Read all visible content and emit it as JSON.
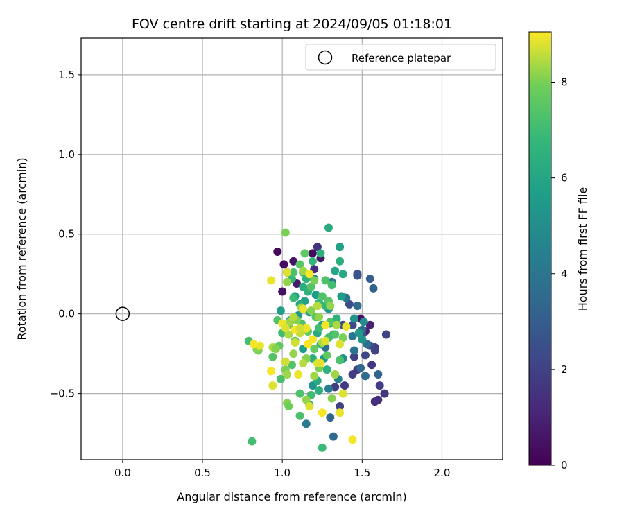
{
  "chart_data": {
    "type": "scatter",
    "title": "FOV centre drift starting at 2024/09/05 01:18:01",
    "xlabel": "Angular distance from reference (arcmin)",
    "ylabel": "Rotation from reference (arcmin)",
    "xlim": [
      -0.26,
      2.38
    ],
    "ylim": [
      -0.915,
      1.73
    ],
    "xticks": [
      0.0,
      0.5,
      1.0,
      1.5,
      2.0
    ],
    "xtick_labels": [
      "0.0",
      "0.5",
      "1.0",
      "1.5",
      "2.0"
    ],
    "yticks": [
      -0.5,
      0.0,
      0.5,
      1.0,
      1.5
    ],
    "ytick_labels": [
      "−0.5",
      "0.0",
      "0.5",
      "1.0",
      "1.5"
    ],
    "grid": true,
    "legend": {
      "placement": "top-right",
      "entries": [
        "Reference platepar"
      ]
    },
    "reference_point": {
      "x": 0.0,
      "y": 0.0,
      "marker": "open-circle",
      "label": "Reference platepar"
    },
    "colorbar": {
      "label": "Hours from first FF file",
      "range": [
        0,
        9.05
      ],
      "ticks": [
        0,
        2,
        4,
        6,
        8
      ],
      "tick_labels": [
        "0",
        "2",
        "4",
        "6",
        "8"
      ],
      "colormap": "viridis"
    },
    "point_fields": [
      "x",
      "y",
      "hours"
    ],
    "points": [
      [
        0.97,
        0.39,
        0.2
      ],
      [
        1.01,
        0.31,
        0.3
      ],
      [
        1.03,
        0.26,
        0.4
      ],
      [
        1.07,
        0.33,
        0.5
      ],
      [
        1.19,
        0.38,
        0.3
      ],
      [
        1.24,
        0.35,
        0.6
      ],
      [
        1.0,
        0.14,
        0.5
      ],
      [
        1.09,
        0.19,
        0.7
      ],
      [
        1.49,
        -0.03,
        0.4
      ],
      [
        1.52,
        -0.11,
        0.8
      ],
      [
        1.55,
        -0.07,
        1.0
      ],
      [
        1.2,
        0.28,
        1.2
      ],
      [
        1.22,
        0.42,
        1.5
      ],
      [
        1.58,
        -0.55,
        1.3
      ],
      [
        1.6,
        -0.54,
        1.4
      ],
      [
        1.64,
        -0.5,
        1.6
      ],
      [
        1.61,
        -0.45,
        1.8
      ],
      [
        1.56,
        -0.32,
        1.7
      ],
      [
        1.58,
        -0.21,
        1.9
      ],
      [
        1.65,
        -0.13,
        2.1
      ],
      [
        1.52,
        -0.26,
        2.2
      ],
      [
        1.47,
        -0.35,
        1.6
      ],
      [
        1.44,
        -0.38,
        1.9
      ],
      [
        1.36,
        -0.58,
        2.0
      ],
      [
        1.33,
        -0.46,
        1.8
      ],
      [
        1.39,
        -0.45,
        1.7
      ],
      [
        1.42,
        0.06,
        2.4
      ],
      [
        1.47,
        0.25,
        2.5
      ],
      [
        1.45,
        -0.27,
        2.0
      ],
      [
        1.44,
        -0.07,
        2.3
      ],
      [
        1.5,
        -0.13,
        2.6
      ],
      [
        1.38,
        -0.07,
        2.2
      ],
      [
        1.55,
        -0.2,
        2.4
      ],
      [
        1.58,
        -0.23,
        2.1
      ],
      [
        1.47,
        0.24,
        2.7
      ],
      [
        1.55,
        0.22,
        3.0
      ],
      [
        1.57,
        0.16,
        3.2
      ],
      [
        1.32,
        -0.77,
        3.5
      ],
      [
        1.3,
        -0.65,
        3.3
      ],
      [
        1.6,
        -0.38,
        3.2
      ],
      [
        1.52,
        -0.39,
        3.6
      ],
      [
        1.49,
        -0.34,
        3.4
      ],
      [
        1.45,
        -0.23,
        3.9
      ],
      [
        1.5,
        -0.1,
        3.7
      ],
      [
        1.53,
        -0.19,
        3.8
      ],
      [
        1.44,
        -0.14,
        4.0
      ],
      [
        1.47,
        0.05,
        3.6
      ],
      [
        1.15,
        -0.69,
        4.2
      ],
      [
        1.29,
        -0.47,
        4.3
      ],
      [
        1.35,
        -0.41,
        4.4
      ],
      [
        1.31,
        0.2,
        4.1
      ],
      [
        1.2,
        0.22,
        4.5
      ],
      [
        1.27,
        -0.21,
        3.8
      ],
      [
        1.4,
        0.1,
        3.9
      ],
      [
        1.51,
        -0.05,
        5.0
      ],
      [
        1.5,
        -0.16,
        5.2
      ],
      [
        1.38,
        -0.28,
        5.1
      ],
      [
        1.45,
        -0.03,
        5.3
      ],
      [
        1.48,
        -0.12,
        5.4
      ],
      [
        1.33,
        -0.13,
        5.2
      ],
      [
        1.29,
        0.03,
        5.5
      ],
      [
        1.21,
        0.12,
        5.6
      ],
      [
        1.14,
        0.08,
        5.8
      ],
      [
        1.25,
        -0.07,
        5.5
      ],
      [
        1.37,
        0.11,
        5.7
      ],
      [
        1.17,
        0.01,
        5.9
      ],
      [
        1.08,
        0.11,
        5.6
      ],
      [
        1.1,
        -0.01,
        5.5
      ],
      [
        1.26,
        -0.28,
        5.4
      ],
      [
        1.19,
        -0.45,
        5.3
      ],
      [
        1.36,
        0.42,
        5.8
      ],
      [
        0.99,
        0.02,
        5.7
      ],
      [
        1.05,
        -0.04,
        5.9
      ],
      [
        1.13,
        -0.22,
        5.6
      ],
      [
        1.29,
        0.54,
        6.2
      ],
      [
        1.33,
        0.27,
        6.0
      ],
      [
        1.36,
        0.33,
        6.4
      ],
      [
        1.38,
        0.25,
        6.1
      ],
      [
        1.24,
        0.38,
        6.5
      ],
      [
        1.19,
        0.33,
        6.7
      ],
      [
        1.13,
        0.17,
        6.3
      ],
      [
        1.15,
        0.22,
        6.6
      ],
      [
        1.11,
        0.06,
        6.2
      ],
      [
        1.22,
        -0.12,
        6.1
      ],
      [
        1.32,
        -0.13,
        6.0
      ],
      [
        1.28,
        -0.35,
        6.5
      ],
      [
        1.22,
        -0.42,
        6.2
      ],
      [
        1.23,
        -0.48,
        6.4
      ],
      [
        1.17,
        -0.57,
        6.6
      ],
      [
        1.27,
        0.05,
        6.7
      ],
      [
        1.23,
        0.07,
        6.8
      ],
      [
        1.07,
        0.1,
        6.9
      ],
      [
        1.16,
        0.14,
        6.5
      ],
      [
        1.06,
        0.22,
        6.8
      ],
      [
        1.25,
        -0.84,
        6.9
      ],
      [
        1.24,
        -0.19,
        6.6
      ],
      [
        1.34,
        -0.03,
        6.5
      ],
      [
        1.19,
        -0.28,
        6.3
      ],
      [
        1.3,
        -0.06,
        6.4
      ],
      [
        0.81,
        -0.8,
        7.1
      ],
      [
        1.11,
        -0.64,
        7.2
      ],
      [
        1.18,
        -0.51,
        7.0
      ],
      [
        1.11,
        -0.5,
        7.3
      ],
      [
        0.99,
        -0.41,
        7.2
      ],
      [
        1.06,
        -0.32,
        7.4
      ],
      [
        1.0,
        -0.12,
        7.0
      ],
      [
        0.97,
        -0.04,
        7.3
      ],
      [
        1.07,
        0.26,
        7.2
      ],
      [
        1.13,
        0.26,
        7.0
      ],
      [
        1.11,
        0.31,
        7.5
      ],
      [
        1.14,
        0.38,
        7.6
      ],
      [
        1.27,
        0.21,
        7.3
      ],
      [
        1.31,
        0.18,
        7.1
      ],
      [
        1.33,
        -0.13,
        7.4
      ],
      [
        1.21,
        -0.02,
        7.5
      ],
      [
        1.28,
        -0.26,
        7.6
      ],
      [
        1.36,
        -0.29,
        7.2
      ],
      [
        1.2,
        -0.22,
        7.7
      ],
      [
        1.08,
        -0.17,
        7.3
      ],
      [
        0.98,
        -0.2,
        7.6
      ],
      [
        0.94,
        -0.27,
        7.4
      ],
      [
        0.84,
        -0.22,
        7.7
      ],
      [
        0.79,
        -0.17,
        7.1
      ],
      [
        1.18,
        0.17,
        7.4
      ],
      [
        1.25,
        0.11,
        7.3
      ],
      [
        1.29,
        0.08,
        7.5
      ],
      [
        1.23,
        -0.09,
        7.0
      ],
      [
        1.16,
        -0.11,
        7.6
      ],
      [
        1.04,
        -0.07,
        7.7
      ],
      [
        1.12,
        -0.06,
        7.3
      ],
      [
        1.29,
        -0.15,
        7.1
      ],
      [
        1.3,
        -0.05,
        7.4
      ],
      [
        1.02,
        0.51,
        8.0
      ],
      [
        1.03,
        -0.56,
        8.1
      ],
      [
        1.04,
        -0.58,
        7.9
      ],
      [
        1.15,
        -0.54,
        8.2
      ],
      [
        1.02,
        -0.35,
        8.0
      ],
      [
        1.03,
        -0.38,
        8.3
      ],
      [
        0.94,
        -0.21,
        8.4
      ],
      [
        0.96,
        -0.22,
        8.1
      ],
      [
        0.85,
        -0.23,
        8.0
      ],
      [
        0.84,
        -0.21,
        8.2
      ],
      [
        1.05,
        -0.05,
        8.3
      ],
      [
        1.09,
        -0.04,
        8.1
      ],
      [
        1.14,
        -0.1,
        8.4
      ],
      [
        1.03,
        0.2,
        8.2
      ],
      [
        1.13,
        0.27,
        8.3
      ],
      [
        1.2,
        0.21,
        8.0
      ],
      [
        1.22,
        0.05,
        8.5
      ],
      [
        1.3,
        0.05,
        8.2
      ],
      [
        1.25,
        -0.18,
        8.4
      ],
      [
        1.15,
        -0.28,
        8.1
      ],
      [
        1.2,
        -0.39,
        8.3
      ],
      [
        1.23,
        -0.34,
        8.0
      ],
      [
        1.13,
        -0.31,
        8.5
      ],
      [
        1.07,
        -0.25,
        8.2
      ],
      [
        1.04,
        -0.13,
        8.4
      ],
      [
        1.11,
        -0.12,
        8.6
      ],
      [
        1.18,
        0.02,
        8.1
      ],
      [
        1.12,
        0.04,
        8.3
      ],
      [
        1.07,
        -0.02,
        8.5
      ],
      [
        1.23,
        -0.02,
        8.2
      ],
      [
        1.34,
        -0.07,
        8.4
      ],
      [
        1.38,
        -0.15,
        8.0
      ],
      [
        1.33,
        -0.38,
        8.3
      ],
      [
        1.31,
        -0.53,
        8.1
      ],
      [
        0.93,
        0.21,
        8.9
      ],
      [
        0.93,
        -0.36,
        9.0
      ],
      [
        0.94,
        -0.45,
        8.8
      ],
      [
        0.86,
        -0.2,
        8.9
      ],
      [
        0.82,
        -0.19,
        9.0
      ],
      [
        1.02,
        -0.3,
        8.7
      ],
      [
        1.0,
        -0.06,
        8.9
      ],
      [
        1.02,
        -0.09,
        8.8
      ],
      [
        1.08,
        -0.1,
        9.0
      ],
      [
        1.1,
        -0.38,
        8.9
      ],
      [
        1.17,
        -0.58,
        8.8
      ],
      [
        1.25,
        -0.62,
        9.0
      ],
      [
        1.36,
        -0.62,
        8.9
      ],
      [
        1.38,
        -0.5,
        8.8
      ],
      [
        1.44,
        -0.79,
        9.0
      ],
      [
        1.4,
        -0.08,
        8.9
      ],
      [
        1.36,
        -0.19,
        8.8
      ],
      [
        1.27,
        -0.07,
        9.0
      ],
      [
        1.24,
        -0.31,
        8.9
      ],
      [
        1.22,
        -0.31,
        8.8
      ],
      [
        1.16,
        -0.19,
        9.0
      ],
      [
        1.08,
        -0.18,
        8.7
      ],
      [
        1.13,
        0.03,
        8.9
      ],
      [
        1.17,
        0.25,
        9.0
      ],
      [
        1.03,
        0.26,
        8.8
      ],
      [
        1.15,
        -0.09,
        8.9
      ],
      [
        1.19,
        -0.16,
        9.0
      ],
      [
        1.27,
        -0.17,
        8.8
      ],
      [
        1.11,
        -0.09,
        8.7
      ]
    ]
  }
}
